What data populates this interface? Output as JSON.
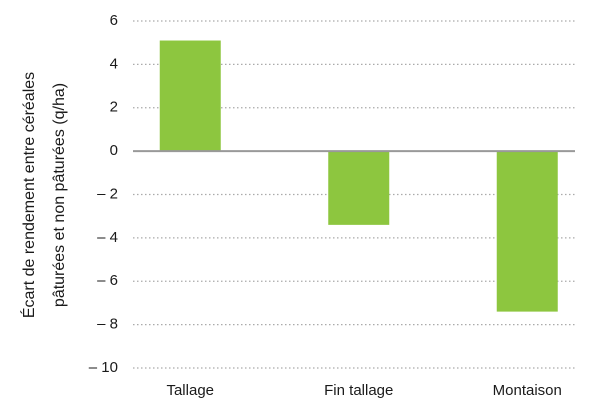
{
  "chart_data": {
    "type": "bar",
    "ylabel": [
      "Écart de rendement entre céréales",
      "pâturées et non pâturées (q/ha)"
    ],
    "categories": [
      "Tallage",
      "Fin tallage",
      "Montaison"
    ],
    "values": [
      5.1,
      -3.4,
      -7.4
    ],
    "color": "#8dc63f",
    "ylim": [
      -10,
      6
    ],
    "yticks": [
      {
        "value": -10,
        "label": "– 10"
      },
      {
        "value": -8,
        "label": "– 8"
      },
      {
        "value": -6,
        "label": "– 6"
      },
      {
        "value": -4,
        "label": "– 4"
      },
      {
        "value": -2,
        "label": "– 2"
      },
      0,
      2,
      4,
      6
    ],
    "grid": true
  }
}
